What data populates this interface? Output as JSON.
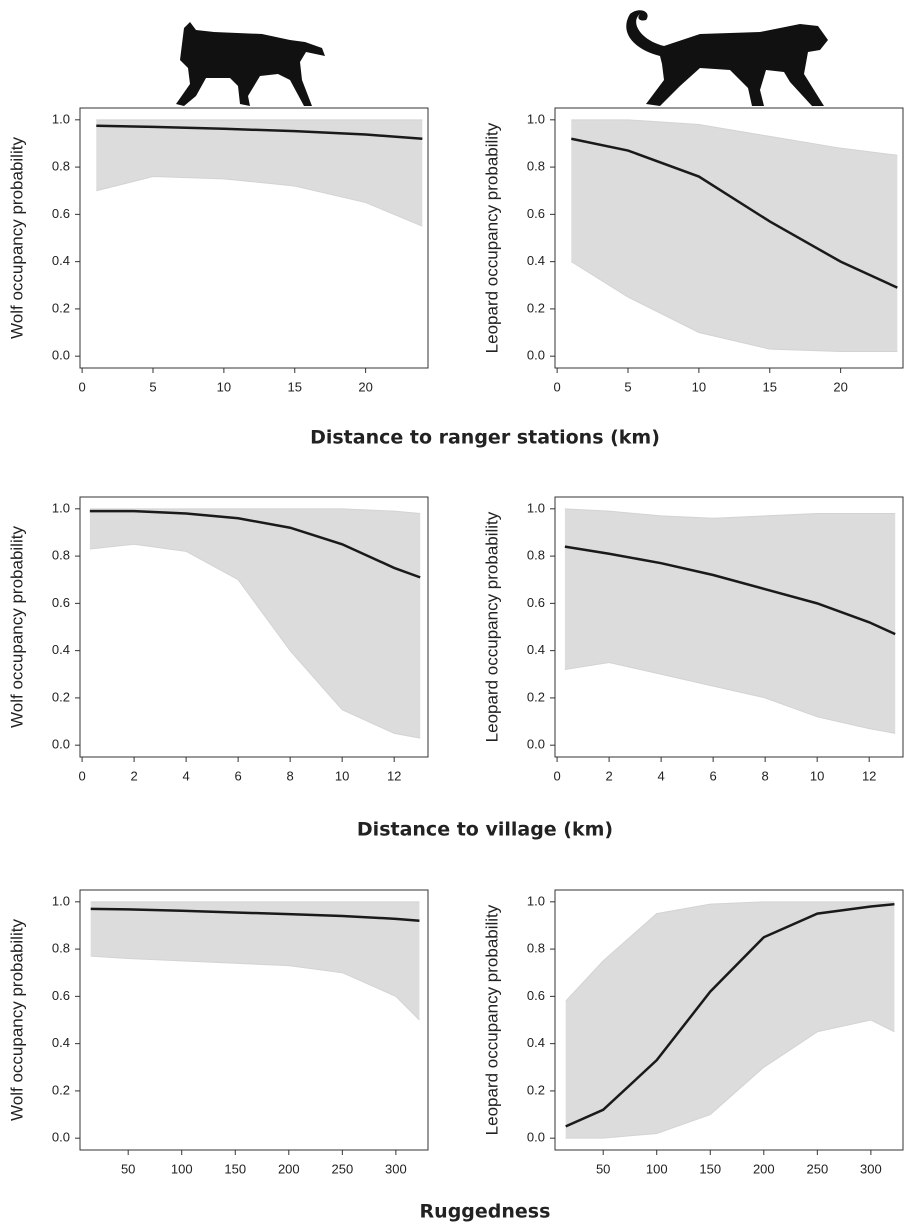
{
  "chart_data": [
    {
      "type": "line",
      "ylabel": "Wolf occupancy probability",
      "x": [
        1,
        5,
        10,
        15,
        20,
        24
      ],
      "xlim": [
        -0.15,
        24.4
      ],
      "xticks": [
        0,
        5,
        10,
        15,
        20
      ],
      "ylim": [
        -0.05,
        1.05
      ],
      "yticks": [
        {
          "value": 0,
          "label": "0.0"
        },
        0.2,
        0.4,
        0.6,
        0.8,
        {
          "value": 1,
          "label": "1.0"
        }
      ],
      "series": [
        {
          "color": "#d3d3d3",
          "values": [
            0.7,
            0.76,
            0.75,
            0.72,
            0.65,
            0.55
          ]
        },
        {
          "color": "#d3d3d3",
          "values": [
            1.0,
            1.0,
            1.0,
            1.0,
            1.0,
            1.0
          ]
        },
        {
          "color": "#1a1a1a",
          "values": [
            0.975,
            0.97,
            0.962,
            0.952,
            0.938,
            0.92
          ]
        }
      ]
    },
    {
      "type": "line",
      "ylabel": "Leopard occupancy probability",
      "x": [
        1,
        5,
        10,
        15,
        20,
        24
      ],
      "xlim": [
        -0.15,
        24.4
      ],
      "xticks": [
        0,
        5,
        10,
        15,
        20
      ],
      "ylim": [
        -0.05,
        1.05
      ],
      "yticks": [
        {
          "value": 0,
          "label": "0.0"
        },
        0.2,
        0.4,
        0.6,
        0.8,
        {
          "value": 1,
          "label": "1.0"
        }
      ],
      "series": [
        {
          "color": "#d3d3d3",
          "values": [
            0.4,
            0.25,
            0.1,
            0.03,
            0.02,
            0.02
          ]
        },
        {
          "color": "#d3d3d3",
          "values": [
            1.0,
            1.0,
            0.98,
            0.93,
            0.88,
            0.85
          ]
        },
        {
          "color": "#1a1a1a",
          "values": [
            0.92,
            0.87,
            0.76,
            0.57,
            0.4,
            0.29
          ]
        }
      ]
    },
    {
      "type": "line",
      "ylabel": "Wolf occupancy probability",
      "x": [
        0.3,
        2,
        4,
        6,
        8,
        10,
        12,
        13
      ],
      "xlim": [
        -0.08,
        13.3
      ],
      "xticks": [
        0,
        2,
        4,
        6,
        8,
        10,
        12
      ],
      "ylim": [
        -0.05,
        1.05
      ],
      "yticks": [
        {
          "value": 0,
          "label": "0.0"
        },
        0.2,
        0.4,
        0.6,
        0.8,
        {
          "value": 1,
          "label": "1.0"
        }
      ],
      "series": [
        {
          "color": "#d3d3d3",
          "values": [
            0.83,
            0.85,
            0.82,
            0.7,
            0.4,
            0.15,
            0.05,
            0.03
          ]
        },
        {
          "color": "#d3d3d3",
          "values": [
            1.0,
            1.0,
            1.0,
            1.0,
            1.0,
            1.0,
            0.99,
            0.98
          ]
        },
        {
          "color": "#1a1a1a",
          "values": [
            0.99,
            0.99,
            0.98,
            0.96,
            0.92,
            0.85,
            0.75,
            0.71
          ]
        }
      ]
    },
    {
      "type": "line",
      "ylabel": "Leopard occupancy probability",
      "x": [
        0.3,
        2,
        4,
        6,
        8,
        10,
        12,
        13
      ],
      "xlim": [
        -0.08,
        13.3
      ],
      "xticks": [
        0,
        2,
        4,
        6,
        8,
        10,
        12
      ],
      "ylim": [
        -0.05,
        1.05
      ],
      "yticks": [
        {
          "value": 0,
          "label": "0.0"
        },
        0.2,
        0.4,
        0.6,
        0.8,
        {
          "value": 1,
          "label": "1.0"
        }
      ],
      "series": [
        {
          "color": "#d3d3d3",
          "values": [
            0.32,
            0.35,
            0.3,
            0.25,
            0.2,
            0.12,
            0.07,
            0.05
          ]
        },
        {
          "color": "#d3d3d3",
          "values": [
            1.0,
            0.99,
            0.97,
            0.96,
            0.97,
            0.98,
            0.98,
            0.98
          ]
        },
        {
          "color": "#1a1a1a",
          "values": [
            0.84,
            0.81,
            0.77,
            0.72,
            0.66,
            0.6,
            0.52,
            0.47
          ]
        }
      ]
    },
    {
      "type": "line",
      "ylabel": "Wolf occupancy probability",
      "x": [
        15,
        50,
        100,
        150,
        200,
        250,
        300,
        322
      ],
      "xlim": [
        5,
        330
      ],
      "xticks": [
        50,
        100,
        150,
        200,
        250,
        300
      ],
      "ylim": [
        -0.05,
        1.05
      ],
      "yticks": [
        {
          "value": 0,
          "label": "0.0"
        },
        0.2,
        0.4,
        0.6,
        0.8,
        {
          "value": 1,
          "label": "1.0"
        }
      ],
      "series": [
        {
          "color": "#d3d3d3",
          "values": [
            0.77,
            0.76,
            0.75,
            0.74,
            0.73,
            0.7,
            0.6,
            0.5
          ]
        },
        {
          "color": "#d3d3d3",
          "values": [
            1.0,
            1.0,
            1.0,
            1.0,
            1.0,
            1.0,
            1.0,
            1.0
          ]
        },
        {
          "color": "#1a1a1a",
          "values": [
            0.97,
            0.968,
            0.962,
            0.955,
            0.948,
            0.94,
            0.928,
            0.92
          ]
        }
      ]
    },
    {
      "type": "line",
      "ylabel": "Leopard occupancy probability",
      "x": [
        15,
        50,
        100,
        150,
        200,
        250,
        300,
        322
      ],
      "xlim": [
        5,
        330
      ],
      "xticks": [
        50,
        100,
        150,
        200,
        250,
        300
      ],
      "ylim": [
        -0.05,
        1.05
      ],
      "yticks": [
        {
          "value": 0,
          "label": "0.0"
        },
        0.2,
        0.4,
        0.6,
        0.8,
        {
          "value": 1,
          "label": "1.0"
        }
      ],
      "series": [
        {
          "color": "#d3d3d3",
          "values": [
            0.0,
            0.0,
            0.02,
            0.1,
            0.3,
            0.45,
            0.5,
            0.45
          ]
        },
        {
          "color": "#d3d3d3",
          "values": [
            0.58,
            0.75,
            0.95,
            0.99,
            1.0,
            1.0,
            1.0,
            1.0
          ]
        },
        {
          "color": "#1a1a1a",
          "values": [
            0.05,
            0.12,
            0.33,
            0.62,
            0.85,
            0.95,
            0.98,
            0.99
          ]
        }
      ]
    }
  ],
  "row_labels": [
    "Distance to ranger stations (km)",
    "Distance to village (km)",
    "Ruggedness"
  ]
}
